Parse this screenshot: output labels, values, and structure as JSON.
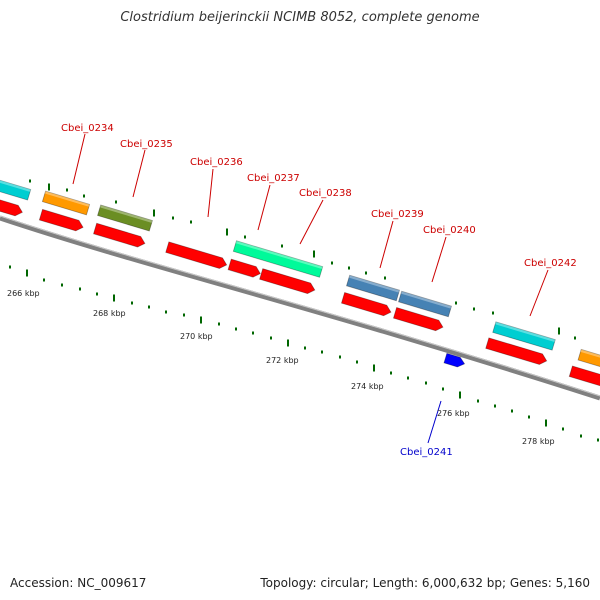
{
  "title": "Clostridium beijerinckii NCIMB 8052, complete genome",
  "footer": {
    "accession": "Accession: NC_009617",
    "summary": "Topology: circular; Length: 6,000,632 bp; Genes: 5,160"
  },
  "colors": {
    "backbone": "#808080",
    "gene": "#ff0000",
    "label_forward": "#cc0000",
    "label_reverse": "#0000cc",
    "ticks": "#006600"
  },
  "scale_labels": [
    "266 kbp",
    "268 kbp",
    "270 kbp",
    "272 kbp",
    "274 kbp",
    "276 kbp",
    "278 kbp"
  ],
  "cds_labels": [
    {
      "id": "Cbei_0234",
      "color": "#ff9900"
    },
    {
      "id": "Cbei_0235",
      "color": "#6b8e23"
    },
    {
      "id": "Cbei_0236",
      "color": "#ff0000"
    },
    {
      "id": "Cbei_0237",
      "color": "#00fa9a"
    },
    {
      "id": "Cbei_0238",
      "color": "#00fa9a"
    },
    {
      "id": "Cbei_0239",
      "color": "#4682b4"
    },
    {
      "id": "Cbei_0240",
      "color": "#4682b4"
    },
    {
      "id": "Cbei_0242",
      "color": "#00ced1"
    },
    {
      "id": "Cbei_0241",
      "color": "#0000ff"
    }
  ]
}
